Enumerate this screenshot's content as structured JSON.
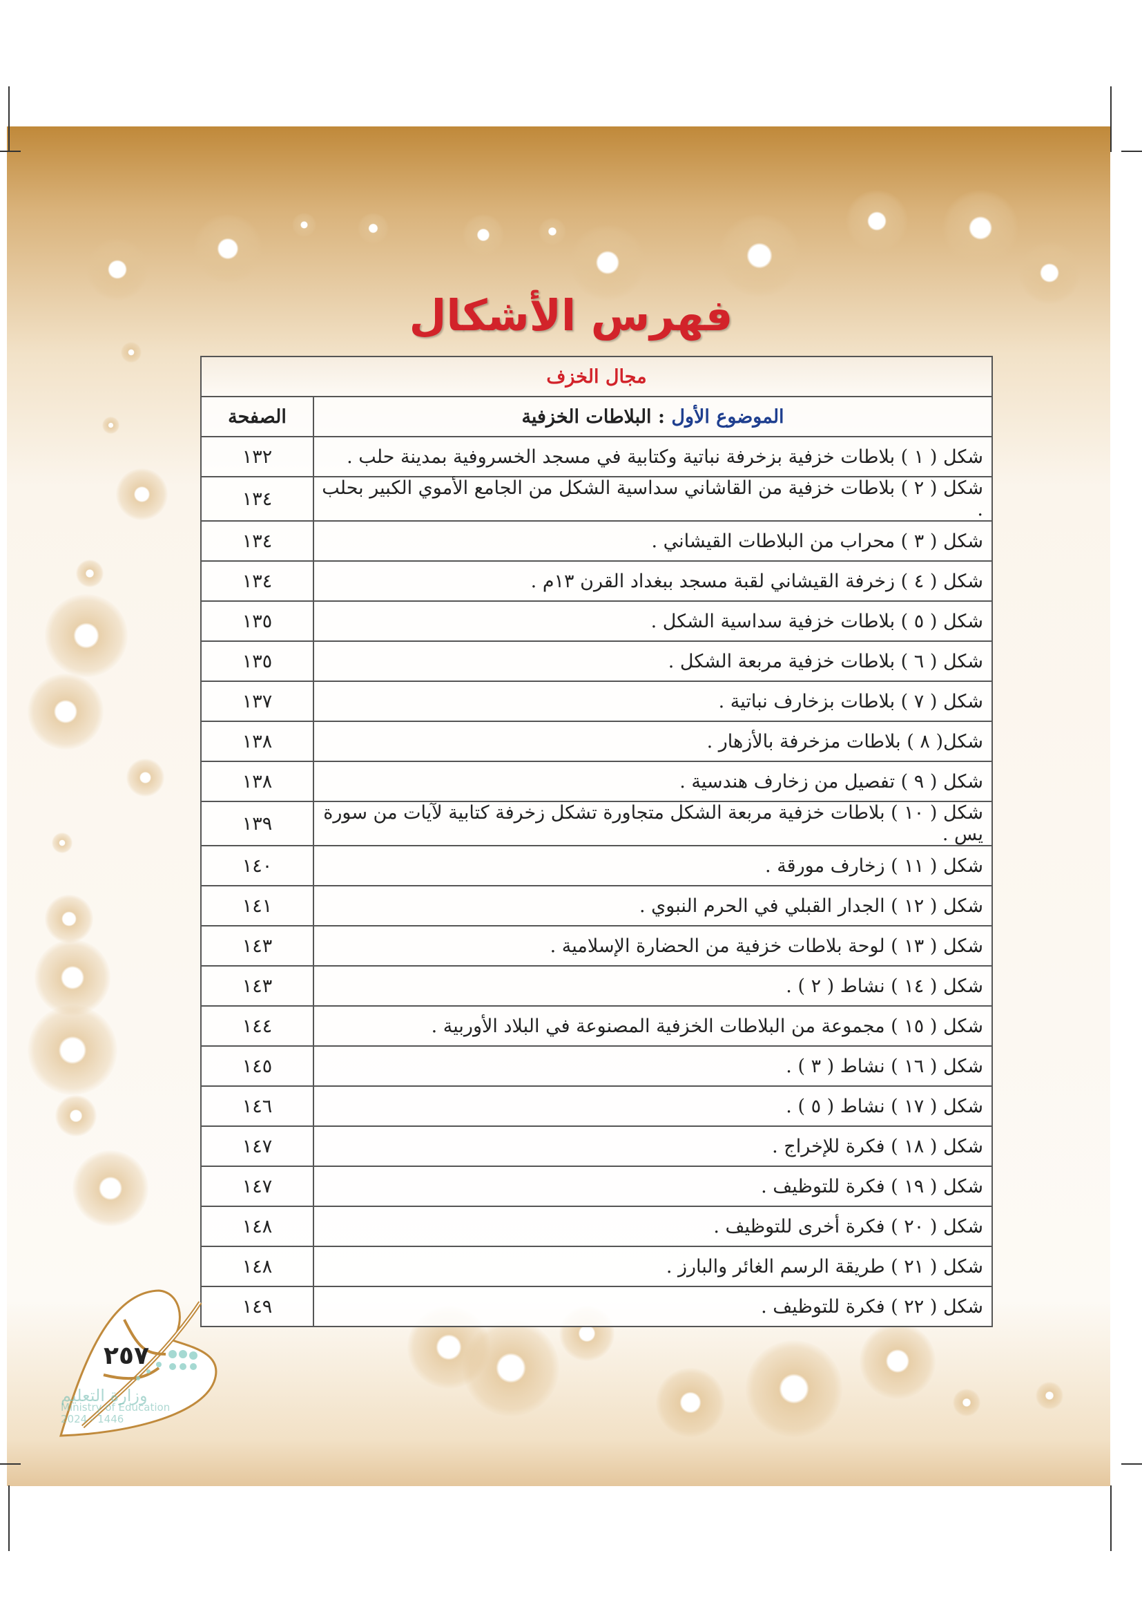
{
  "title": "فهرس الأشكال",
  "section": "مجال الخزف",
  "header": {
    "topic_label": "الموضوع الأول",
    "topic_name": ": البلاطات الخزفية",
    "page_label": "الصفحة"
  },
  "rows": [
    {
      "desc": "شكل ( ١ ) بلاطات خزفية بزخرفة نباتية وكتابية في مسجد الخسروفية بمدينة حلب .",
      "page": "١٣٢"
    },
    {
      "desc": "شكل ( ٢ ) بلاطات خزفية من القاشاني سداسية الشكل من الجامع الأموي الكبير بحلب .",
      "page": "١٣٤"
    },
    {
      "desc": "شكل ( ٣ ) محراب من البلاطات القيشاني .",
      "page": "١٣٤"
    },
    {
      "desc": "شكل ( ٤ ) زخرفة القيشاني لقبة مسجد ببغداد القرن ١٣م .",
      "page": "١٣٤"
    },
    {
      "desc": "شكل ( ٥ ) بلاطات خزفية سداسية الشكل .",
      "page": "١٣٥"
    },
    {
      "desc": "شكل ( ٦ ) بلاطات خزفية مربعة الشكل .",
      "page": "١٣٥"
    },
    {
      "desc": "شكل ( ٧ ) بلاطات بزخارف نباتية .",
      "page": "١٣٧"
    },
    {
      "desc": "شكل( ٨ ) بلاطات مزخرفة بالأزهار .",
      "page": "١٣٨"
    },
    {
      "desc": "شكل ( ٩ ) تفصيل من زخارف هندسية .",
      "page": "١٣٨"
    },
    {
      "desc": "شكل ( ١٠ ) بلاطات خزفية مربعة الشكل متجاورة تشكل زخرفة كتابية لآيات من سورة يس .",
      "page": "١٣٩"
    },
    {
      "desc": "شكل ( ١١ ) زخارف مورقة .",
      "page": "١٤٠"
    },
    {
      "desc": "شكل ( ١٢ ) الجدار القبلي في الحرم النبوي .",
      "page": "١٤١"
    },
    {
      "desc": "شكل ( ١٣ ) لوحة بلاطات خزفية من الحضارة الإسلامية .",
      "page": "١٤٣"
    },
    {
      "desc": "شكل ( ١٤ ) نشاط ( ٢ ) .",
      "page": "١٤٣"
    },
    {
      "desc": "شكل ( ١٥ ) مجموعة من البلاطات الخزفية المصنوعة في البلاد الأوربية .",
      "page": "١٤٤"
    },
    {
      "desc": "شكل ( ١٦ ) نشاط ( ٣ ) .",
      "page": "١٤٥"
    },
    {
      "desc": "شكل ( ١٧ ) نشاط ( ٥ ) .",
      "page": "١٤٦"
    },
    {
      "desc": "شكل ( ١٨ ) فكرة للإخراج .",
      "page": "١٤٧"
    },
    {
      "desc": "شكل ( ١٩ ) فكرة للتوظيف .",
      "page": "١٤٧"
    },
    {
      "desc": "شكل ( ٢٠ ) فكرة أخرى للتوظيف .",
      "page": "١٤٨"
    },
    {
      "desc": "شكل ( ٢١ ) طريقة الرسم الغائر والبارز .",
      "page": "١٤٨"
    },
    {
      "desc": "شكل ( ٢٢ ) فكرة للتوظيف .",
      "page": "١٤٩"
    }
  ],
  "page_number": "٢٥٧",
  "watermark": {
    "ar": "وزارة التعليم",
    "en": "Ministry of Education",
    "years": "2024 - 1446"
  },
  "colors": {
    "title": "#d2232a",
    "topic": "#1f3f8f",
    "band": "#c0893a"
  }
}
